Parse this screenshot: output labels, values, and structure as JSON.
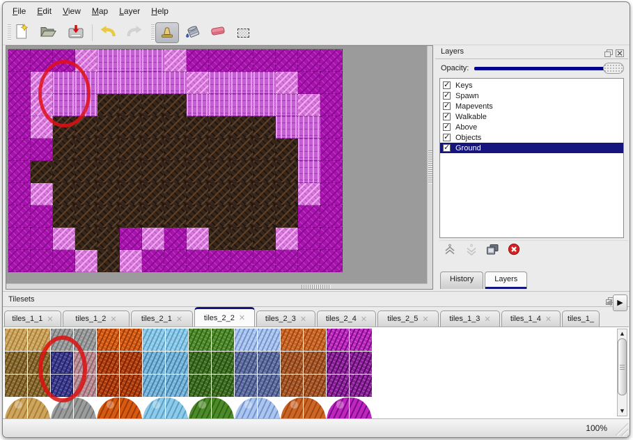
{
  "menu_bar": {
    "items": [
      {
        "label": "File"
      },
      {
        "label": "Edit"
      },
      {
        "label": "View"
      },
      {
        "label": "Map"
      },
      {
        "label": "Layer"
      },
      {
        "label": "Help"
      }
    ]
  },
  "toolbar": {
    "buttons": [
      "new-file",
      "open-file",
      "save-file",
      "undo",
      "redo",
      "stamp-tool",
      "fill-tool",
      "eraser-tool",
      "select-tool"
    ],
    "active_tool": "stamp-tool"
  },
  "map_view": {
    "tile_size": 32,
    "columns": 15,
    "rows": 10,
    "legend": {
      "M": "dark-magenta-rock",
      "P": "pale-pink-rock",
      "L": "light-purple-pillar",
      "B": "dark-brown-rock"
    },
    "tile_colors": {
      "M": {
        "base": "#a812ad",
        "dark": "#8a0c93",
        "light": "#c240c6"
      },
      "P": {
        "base": "#d878dc",
        "dark": "#b854c0",
        "light": "#f2aef4"
      },
      "L": {
        "base": "#c45fd2",
        "dark": "#a438b6",
        "light": "#e89cf0"
      },
      "B": {
        "base": "#37261b",
        "dark": "#221510",
        "light": "#5e4024"
      }
    },
    "grid": [
      "MMMPLLLPMMMMMMM",
      "MPLLLLLLPLLLPMM",
      "MPLLBBBBLLLLLPM",
      "MPBBBBBBBBBBLLM",
      "MMBBBBBBBBBBBLM",
      "MBBBBBBBBBBBBLM",
      "MPBBBBBBBBBBBPM",
      "MMBBBBBBBBBBBMM",
      "MMPBBMPMPBBBPMM",
      "MMMPBPMMMMMMMMM"
    ],
    "annotation": {
      "shape": "ellipse",
      "color": "#e01118"
    }
  },
  "layers_panel": {
    "title": "Layers",
    "opacity_label": "Opacity:",
    "opacity_percent": 100,
    "accent_color": "#00008b",
    "selection_color": "#15157d",
    "layers": [
      {
        "name": "Keys",
        "visible": true
      },
      {
        "name": "Spawn",
        "visible": true
      },
      {
        "name": "Mapevents",
        "visible": true
      },
      {
        "name": "Walkable",
        "visible": true
      },
      {
        "name": "Above",
        "visible": true
      },
      {
        "name": "Objects",
        "visible": true
      },
      {
        "name": "Ground",
        "visible": true,
        "selected": true
      }
    ],
    "tool_icons": [
      "raise-layer",
      "lower-layer",
      "duplicate-layer",
      "delete-layer"
    ],
    "dock_tabs": [
      {
        "label": "History",
        "active": false
      },
      {
        "label": "Layers",
        "active": true
      }
    ]
  },
  "tilesets_panel": {
    "title": "Tilesets",
    "tabs": [
      {
        "label": "tiles_1_1",
        "active": false,
        "closable": true
      },
      {
        "label": "tiles_1_2",
        "active": false,
        "closable": true
      },
      {
        "label": "tiles_2_1",
        "active": false,
        "closable": true
      },
      {
        "label": "tiles_2_2",
        "active": true,
        "closable": true
      },
      {
        "label": "tiles_2_3",
        "active": false,
        "closable": true
      },
      {
        "label": "tiles_2_4",
        "active": false,
        "closable": true
      },
      {
        "label": "tiles_2_5",
        "active": false,
        "closable": true
      },
      {
        "label": "tiles_1_3",
        "active": false,
        "closable": true
      },
      {
        "label": "tiles_1_4",
        "active": false,
        "closable": true
      },
      {
        "label": "tiles_1_",
        "active": false,
        "closable": false,
        "truncated": true
      }
    ],
    "palette": {
      "sand": [
        "#cda55c",
        "#a87f3a"
      ],
      "stone": [
        "#9b9d9c",
        "#747677"
      ],
      "lava": [
        "#d65a10",
        "#9e3a05"
      ],
      "ice": [
        "#8fcae8",
        "#57a0c6"
      ],
      "moss": [
        "#4d8b29",
        "#326418"
      ],
      "frost": [
        "#aac6ee",
        "#7492cc"
      ],
      "clay": [
        "#cd6527",
        "#a04812"
      ],
      "vine": [
        "#bf25bf",
        "#7a0d84"
      ],
      "fur": [
        "#8b6b2d",
        "#614719"
      ],
      "navy": [
        "#3c3c90",
        "#222268"
      ],
      "mauve": [
        "#ba8f97",
        "#93646c"
      ],
      "ember": [
        "#b23d09",
        "#7e2302"
      ],
      "icecol": [
        "#76b6da",
        "#4682ac"
      ],
      "darkmoss": [
        "#3d6f21",
        "#254d10"
      ],
      "darkfrost": [
        "#5e6ea2",
        "#3a4876"
      ],
      "rust": [
        "#aa5524",
        "#7a3a14"
      ],
      "darkvine": [
        "#8e1e9e",
        "#530c5e"
      ]
    },
    "grid_rows": [
      [
        "sand",
        "sand",
        "stone",
        "stone",
        "lava",
        "lava",
        "ice",
        "ice",
        "moss",
        "moss",
        "frost",
        "frost",
        "clay",
        "clay",
        "vine",
        "vine"
      ],
      [
        "fur",
        "fur",
        "navy",
        "mauve",
        "ember",
        "ember",
        "icecol",
        "icecol",
        "darkmoss",
        "darkmoss",
        "darkfrost",
        "darkfrost",
        "rust",
        "rust",
        "darkvine",
        "darkvine"
      ],
      [
        "fur",
        "fur",
        "navy",
        "mauve",
        "ember",
        "ember",
        "icecol",
        "icecol",
        "darkmoss",
        "darkmoss",
        "darkfrost",
        "darkfrost",
        "rust",
        "rust",
        "darkvine",
        "darkvine"
      ]
    ],
    "mound_row": [
      "sand",
      "stone",
      "lava",
      "ice",
      "moss",
      "frost",
      "clay",
      "vine"
    ],
    "selected_tile": {
      "column": 2,
      "rows": [
        1,
        2
      ]
    },
    "annotation": {
      "shape": "ellipse",
      "color": "#dc1111"
    }
  },
  "status_bar": {
    "zoom_level": "100%"
  }
}
